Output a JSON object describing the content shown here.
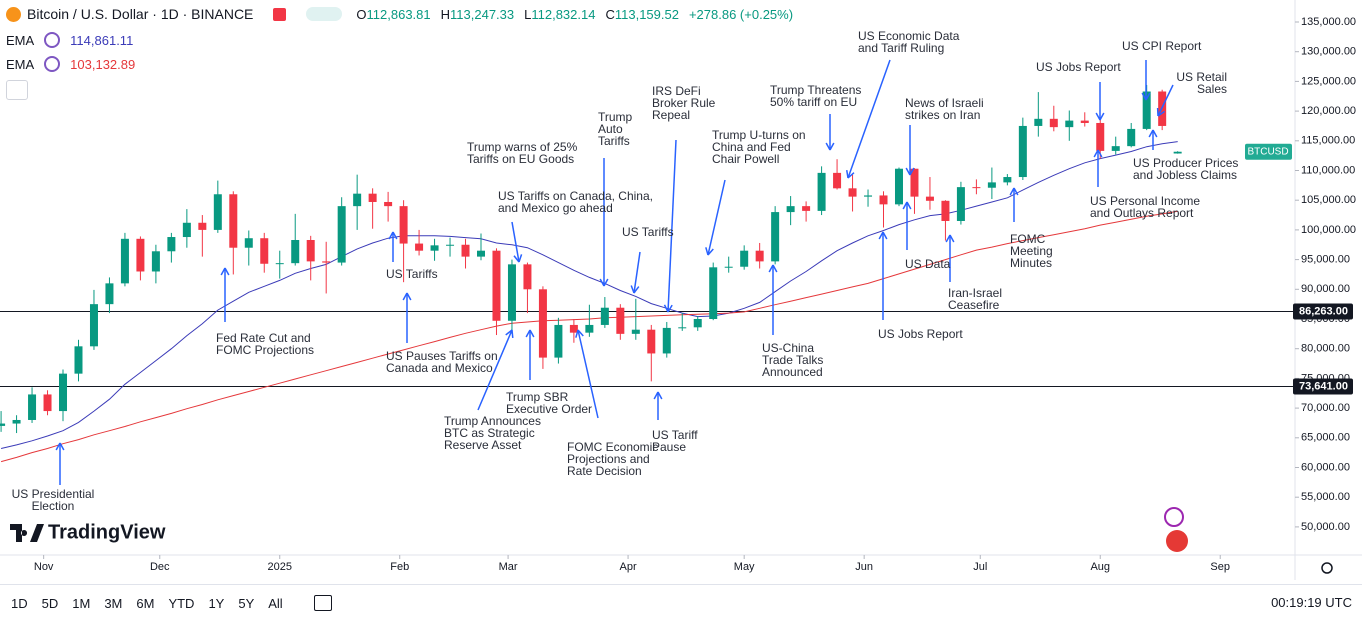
{
  "chart_data": {
    "type": "candlestick",
    "title": "Bitcoin / U.S. Dollar · 1D · BINANCE",
    "quote": [
      {
        "key": "O",
        "label": "112,863.81"
      },
      {
        "key": "H",
        "label": "113,247.33"
      },
      {
        "key": "L",
        "label": "112,832.14"
      },
      {
        "key": "C",
        "label": "113,159.52"
      }
    ],
    "change": "+278.86 (+0.25%)",
    "symbol": "BTCUSD",
    "symbol_color": "#22ab94",
    "up_color": "#089981",
    "down_color": "#f23645",
    "categories": [
      null,
      null,
      null,
      null,
      null,
      null,
      null,
      null,
      null,
      null,
      null,
      null,
      null,
      null,
      null,
      null,
      null,
      null,
      null,
      null,
      null,
      null,
      null,
      null,
      null,
      null,
      null,
      null,
      null,
      null,
      null,
      null,
      null,
      null,
      null,
      null,
      null,
      null,
      null,
      null,
      null,
      null,
      null,
      null,
      null,
      null,
      null,
      null,
      null,
      null,
      null,
      null,
      null,
      null,
      null,
      null,
      null,
      null,
      null,
      null,
      null,
      null,
      null,
      null,
      null,
      null,
      null,
      null,
      null,
      null,
      null,
      null,
      null,
      null,
      null,
      null,
      null
    ],
    "ohlc": [
      [
        67000,
        69500,
        66000,
        67400
      ],
      [
        67400,
        68800,
        65800,
        68000
      ],
      [
        68000,
        73500,
        67500,
        72300
      ],
      [
        72300,
        73000,
        68800,
        69500
      ],
      [
        69500,
        76500,
        67800,
        75800
      ],
      [
        75800,
        81500,
        74500,
        80400
      ],
      [
        80400,
        89900,
        79800,
        87500
      ],
      [
        87500,
        92000,
        86000,
        91000
      ],
      [
        91000,
        99500,
        90500,
        98500
      ],
      [
        98500,
        98900,
        91500,
        93000
      ],
      [
        93000,
        97500,
        91000,
        96400
      ],
      [
        96400,
        99500,
        94500,
        98800
      ],
      [
        98800,
        103500,
        97000,
        101200
      ],
      [
        101200,
        102500,
        95500,
        100000
      ],
      [
        100000,
        108300,
        99500,
        106000
      ],
      [
        106000,
        106500,
        92500,
        97000
      ],
      [
        97000,
        99900,
        94000,
        98600
      ],
      [
        98600,
        99500,
        92800,
        94300
      ],
      [
        94300,
        96500,
        91800,
        94400
      ],
      [
        94400,
        102700,
        94000,
        98300
      ],
      [
        98300,
        99000,
        91500,
        94700
      ],
      [
        94700,
        98000,
        89300,
        94500
      ],
      [
        94500,
        105500,
        94000,
        104000
      ],
      [
        104000,
        109300,
        100000,
        106100
      ],
      [
        106100,
        107000,
        100200,
        104700
      ],
      [
        104700,
        106400,
        101400,
        104000
      ],
      [
        104000,
        105000,
        91200,
        97700
      ],
      [
        97700,
        100000,
        95700,
        96500
      ],
      [
        96500,
        98500,
        94800,
        97400
      ],
      [
        97400,
        98700,
        95500,
        97500
      ],
      [
        97500,
        98500,
        93500,
        95500
      ],
      [
        95500,
        99400,
        94900,
        96500
      ],
      [
        96500,
        96900,
        82300,
        84700
      ],
      [
        84700,
        95000,
        82500,
        94200
      ],
      [
        94200,
        94500,
        86000,
        90000
      ],
      [
        90000,
        90500,
        76600,
        78500
      ],
      [
        78500,
        85200,
        77500,
        84000
      ],
      [
        84000,
        85000,
        81000,
        82700
      ],
      [
        82700,
        87400,
        82000,
        84000
      ],
      [
        84000,
        88700,
        83500,
        86900
      ],
      [
        86900,
        87500,
        81500,
        82500
      ],
      [
        82500,
        88400,
        81500,
        83200
      ],
      [
        83200,
        84000,
        74500,
        79200
      ],
      [
        79200,
        84500,
        78500,
        83500
      ],
      [
        83500,
        86000,
        83000,
        83600
      ],
      [
        83600,
        85500,
        83000,
        85000
      ],
      [
        85000,
        94500,
        84800,
        93700
      ],
      [
        93700,
        95500,
        92800,
        93800
      ],
      [
        93800,
        97400,
        93300,
        96500
      ],
      [
        96500,
        97800,
        93500,
        94700
      ],
      [
        94700,
        104000,
        94200,
        103000
      ],
      [
        103000,
        105700,
        100800,
        104000
      ],
      [
        104000,
        104800,
        101400,
        103200
      ],
      [
        103200,
        110700,
        102500,
        109600
      ],
      [
        109600,
        111900,
        106800,
        107000
      ],
      [
        107000,
        109300,
        103100,
        105600
      ],
      [
        105600,
        106800,
        103900,
        105800
      ],
      [
        105800,
        106500,
        100400,
        104300
      ],
      [
        104300,
        110500,
        104000,
        110300
      ],
      [
        110300,
        110400,
        102700,
        105600
      ],
      [
        105600,
        108900,
        103400,
        104900
      ],
      [
        104900,
        105000,
        98200,
        101500
      ],
      [
        101500,
        108100,
        100900,
        107200
      ],
      [
        107200,
        108500,
        106000,
        107100
      ],
      [
        107100,
        110500,
        105200,
        108000
      ],
      [
        108000,
        109400,
        107500,
        108900
      ],
      [
        108900,
        118900,
        108400,
        117500
      ],
      [
        117500,
        123200,
        115700,
        118700
      ],
      [
        118700,
        120900,
        116600,
        117300
      ],
      [
        117300,
        120100,
        115000,
        118400
      ],
      [
        118400,
        119800,
        117400,
        118000
      ],
      [
        118000,
        118900,
        112000,
        113300
      ],
      [
        113300,
        115700,
        112700,
        114100
      ],
      [
        114100,
        118000,
        113900,
        117000
      ],
      [
        117000,
        124400,
        116800,
        123300
      ],
      [
        123300,
        123600,
        116800,
        117500
      ],
      [
        112863.81,
        113247.33,
        112832.14,
        113159.52
      ]
    ],
    "series": [
      {
        "name": "EMA",
        "color": "#3b3bb8",
        "last_label": "114,861.11",
        "values": [
          63200,
          63800,
          64500,
          65300,
          66200,
          67600,
          69500,
          71500,
          74000,
          76000,
          78000,
          80000,
          82200,
          84200,
          86500,
          88000,
          89500,
          90500,
          91500,
          92700,
          93500,
          94200,
          95500,
          96800,
          97800,
          98600,
          99000,
          99000,
          99000,
          98900,
          98700,
          98500,
          97800,
          97500,
          97000,
          95800,
          94500,
          93200,
          92000,
          91000,
          89800,
          88800,
          87600,
          86800,
          86000,
          85400,
          85500,
          86000,
          86800,
          87800,
          89600,
          91400,
          93000,
          94800,
          96500,
          97800,
          99000,
          99900,
          100900,
          101700,
          102400,
          102700,
          103300,
          104000,
          104700,
          105400,
          106700,
          108000,
          109200,
          110300,
          111300,
          112000,
          112600,
          113200,
          114000,
          114500,
          114861.11
        ]
      },
      {
        "name": "EMA",
        "color": "#e5383b",
        "last_label": "103,132.89",
        "values": [
          61000,
          61700,
          62500,
          63200,
          64000,
          64700,
          65500,
          66200,
          66900,
          67700,
          68400,
          69100,
          69900,
          70600,
          71400,
          72100,
          72800,
          73500,
          74200,
          74900,
          75600,
          76300,
          77000,
          77700,
          78400,
          79100,
          79800,
          80500,
          81200,
          81900,
          82600,
          83200,
          83800,
          84300,
          84500,
          84700,
          84800,
          84900,
          85000,
          85200,
          85300,
          85400,
          85500,
          85600,
          85700,
          85800,
          85900,
          86000,
          86200,
          86800,
          87400,
          88000,
          88600,
          89200,
          89800,
          90400,
          91000,
          91800,
          92600,
          93400,
          94200,
          95000,
          95800,
          96600,
          97100,
          97700,
          98200,
          98700,
          99200,
          99700,
          100200,
          100800,
          101300,
          101800,
          102300,
          102700,
          103132.89
        ]
      }
    ],
    "xlim": [
      -0.07,
      83.58
    ],
    "xticks": [
      {
        "value": 2.75,
        "label": "Nov"
      },
      {
        "value": 10.25,
        "label": "Dec"
      },
      {
        "value": 18,
        "label": "2025"
      },
      {
        "value": 25.75,
        "label": "Feb"
      },
      {
        "value": 32.75,
        "label": "Mar"
      },
      {
        "value": 40.5,
        "label": "Apr"
      },
      {
        "value": 48,
        "label": "May"
      },
      {
        "value": 55.75,
        "label": "Jun"
      },
      {
        "value": 63.25,
        "label": "Jul"
      },
      {
        "value": 71,
        "label": "Aug"
      },
      {
        "value": 78.75,
        "label": "Sep"
      }
    ],
    "ylim": [
      45269,
      138704
    ],
    "yticks": [
      {
        "value": 50000,
        "label": "50,000.00"
      },
      {
        "value": 55000,
        "label": "55,000.00"
      },
      {
        "value": 60000,
        "label": "60,000.00"
      },
      {
        "value": 65000,
        "label": "65,000.00"
      },
      {
        "value": 70000,
        "label": "70,000.00"
      },
      {
        "value": 75000,
        "label": "75,000.00"
      },
      {
        "value": 80000,
        "label": "80,000.00"
      },
      {
        "value": 85000,
        "label": "85,000.00"
      },
      {
        "value": 90000,
        "label": "90,000.00"
      },
      {
        "value": 95000,
        "label": "95,000.00"
      },
      {
        "value": 100000,
        "label": "100,000.00"
      },
      {
        "value": 105000,
        "label": "105,000.00"
      },
      {
        "value": 110000,
        "label": "110,000.00"
      },
      {
        "value": 115000,
        "label": "115,000.00"
      },
      {
        "value": 120000,
        "label": "120,000.00"
      },
      {
        "value": 125000,
        "label": "125,000.00"
      },
      {
        "value": 130000,
        "label": "130,000.00"
      },
      {
        "value": 135000,
        "label": "135,000.00"
      }
    ],
    "hlines": [
      {
        "value": 86263,
        "label": "86,263.00"
      },
      {
        "value": 73641,
        "label": "73,641.00"
      }
    ],
    "annotations": [
      {
        "text": "US Presidential\nElection"
      },
      {
        "text": "Fed Rate Cut and\nFOMC Projections"
      },
      {
        "text": "US Tariffs"
      },
      {
        "text": "US Pauses Tariffs on\nCanada and Mexico"
      },
      {
        "text": "Trump warns of 25%\nTariffs on EU Goods"
      },
      {
        "text": "US Tariffs on Canada, China,\nand Mexico go ahead"
      },
      {
        "text": "Trump\nAuto\nTariffs"
      },
      {
        "text": "US Tariffs"
      },
      {
        "text": "IRS DeFi\nBroker Rule\nRepeal"
      },
      {
        "text": "Trump U-turns on\nChina and Fed\nChair Powell"
      },
      {
        "text": "Trump Threatens\n50% tariff on EU"
      },
      {
        "text": "US Economic Data\nand Tariff Ruling"
      },
      {
        "text": "News of Israeli\nstrikes on Iran"
      },
      {
        "text": "US Jobs Report"
      },
      {
        "text": "US CPI Report"
      },
      {
        "text": "US Retail\nSales"
      },
      {
        "text": "US Producer Prices\nand Jobless Claims"
      },
      {
        "text": "US Personal Income\nand Outlays Report"
      },
      {
        "text": "FOMC\nMeeting\nMinutes"
      },
      {
        "text": "US Data"
      },
      {
        "text": "Iran-Israel\nCeasefire"
      },
      {
        "text": "US Jobs Report"
      },
      {
        "text": "US-China\nTrade Talks\nAnnounced"
      },
      {
        "text": "US Tariff\nPause"
      },
      {
        "text": "FOMC Economic\nProjections and\nRate Decision"
      },
      {
        "text": "Trump SBR\nExecutive Order"
      },
      {
        "text": "Trump Announces\nBTC as Strategic\nReserve Asset"
      }
    ]
  },
  "logo": "TradingView",
  "toolbar": {
    "ranges": [
      "1D",
      "5D",
      "1M",
      "3M",
      "6M",
      "YTD",
      "1Y",
      "5Y",
      "All"
    ],
    "time": "00:19:19 UTC"
  }
}
